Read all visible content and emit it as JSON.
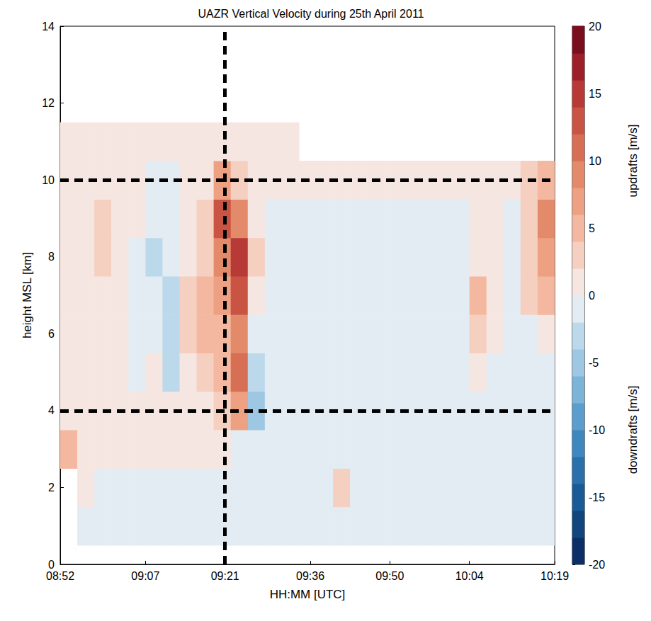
{
  "chart_data": {
    "type": "heatmap",
    "title": "UAZR Vertical Velocity during 25th April 2011",
    "x_label": "HH:MM [UTC]",
    "y_label": "height MSL [km]",
    "xlim": [
      532,
      619
    ],
    "xticks": [
      {
        "value": 532,
        "label": "08:52"
      },
      {
        "value": 547,
        "label": "09:07"
      },
      {
        "value": 561,
        "label": "09:21"
      },
      {
        "value": 576,
        "label": "09:36"
      },
      {
        "value": 590,
        "label": "09:50"
      },
      {
        "value": 604,
        "label": "10:04"
      },
      {
        "value": 619,
        "label": "10:19"
      }
    ],
    "ylim": [
      0,
      14
    ],
    "yticks": [
      0,
      2,
      4,
      6,
      8,
      10,
      12,
      14
    ],
    "grid": false,
    "time_bins": [
      532,
      535,
      538,
      541,
      544,
      547,
      550,
      553,
      556,
      559,
      562,
      565,
      568,
      571,
      574,
      577,
      580,
      583,
      586,
      589,
      592,
      595,
      598,
      601,
      604,
      607,
      610,
      613,
      616,
      619
    ],
    "height_bins": [
      0.5,
      1.5,
      2.5,
      3.5,
      4.5,
      5.5,
      6.5,
      7.5,
      8.5,
      9.5,
      10.5,
      11.5
    ],
    "w": [
      [
        null,
        -1,
        -1,
        -1,
        -1,
        -0.5,
        -1,
        -1,
        -0.5,
        -1,
        -1,
        -1,
        -0.5,
        -1,
        -1,
        -1,
        -0.5,
        -1,
        -1,
        -1,
        -0.5,
        -1,
        -1,
        -1,
        -1,
        -1,
        -2,
        -1,
        -1
      ],
      [
        null,
        1,
        -1,
        -0.5,
        -1,
        -0.5,
        -0.5,
        -1,
        -0.5,
        -1,
        -1,
        -1,
        -1,
        -0.5,
        -1,
        -0.5,
        2,
        -0.5,
        -1,
        -1,
        -1,
        -0.5,
        -1,
        -1,
        -1,
        -0.5,
        -1,
        -1,
        -1
      ],
      [
        4,
        1,
        1,
        0.5,
        1,
        1,
        0.5,
        1,
        1,
        0.5,
        -1,
        -1,
        -1,
        -0.5,
        -1,
        -1,
        -0.5,
        -1,
        -0.5,
        -1,
        -1,
        -0.5,
        -1,
        -1,
        -1,
        -0.5,
        -1,
        -1,
        -1
      ],
      [
        1,
        1,
        0.5,
        1,
        1,
        1,
        1,
        0.5,
        1,
        2,
        6,
        -6,
        -2,
        -1,
        -0.5,
        -1,
        -1,
        -0.5,
        -1,
        -1,
        -1,
        -0.5,
        -1,
        -1,
        -0.5,
        -1,
        -1,
        -2,
        -1
      ],
      [
        1,
        0.5,
        1,
        1,
        -1,
        1,
        -3,
        1,
        2,
        4,
        10,
        -4,
        -1,
        -1,
        -0.5,
        -1,
        -1,
        -0.5,
        -0.5,
        -1,
        -1,
        -0.5,
        -1,
        -0.5,
        1,
        -1,
        -1,
        -1,
        -0.5
      ],
      [
        0.5,
        0.5,
        1,
        1,
        -1,
        -2,
        -4,
        3,
        5,
        4,
        9,
        -2,
        -1,
        -1,
        -0.5,
        -0.5,
        -1,
        -0.5,
        -0.5,
        -1,
        -1,
        -0.5,
        -0.5,
        -0.5,
        3,
        1,
        -1,
        -1,
        0.5
      ],
      [
        1,
        1,
        1,
        0.5,
        -1,
        -2,
        -4,
        2,
        4,
        6,
        13,
        1,
        -1,
        -1,
        -0.5,
        -1,
        -1,
        -0.5,
        -1,
        -1,
        -0.5,
        -1,
        -0.5,
        -0.5,
        4,
        1,
        -1,
        2,
        5
      ],
      [
        1,
        1,
        2,
        1,
        -1,
        -3,
        -2,
        1,
        3,
        9,
        15,
        2,
        -1,
        -1,
        -1,
        -1,
        -1,
        -0.5,
        -0.5,
        -1,
        -1,
        -0.5,
        -1,
        -0.5,
        1,
        0.5,
        -0.5,
        3,
        7
      ],
      [
        1,
        1,
        2,
        1,
        0.5,
        -2,
        -1,
        1,
        2,
        12,
        8,
        1,
        -0.5,
        -1,
        -1,
        -0.5,
        -0.5,
        -1,
        -0.5,
        -0.5,
        -0.5,
        -0.5,
        -1,
        -0.5,
        0.5,
        0.5,
        -0.5,
        3,
        8
      ],
      [
        0.5,
        1,
        1,
        0.5,
        0.5,
        -1,
        -0.5,
        1,
        1,
        6,
        3,
        1,
        0.5,
        0.5,
        0.5,
        0.5,
        0.5,
        0.5,
        0.5,
        0.5,
        0.5,
        0.5,
        0.5,
        0.5,
        0.5,
        0.5,
        1,
        2,
        4
      ],
      [
        0.5,
        0.5,
        0.5,
        0.5,
        0.5,
        0.5,
        0.5,
        0.5,
        0.5,
        1,
        1,
        0.5,
        0.5,
        0.5,
        null,
        null,
        null,
        null,
        null,
        null,
        null,
        null,
        null,
        null,
        null,
        null,
        null,
        null,
        null
      ]
    ],
    "colorbar": {
      "range": [
        -20,
        20
      ],
      "ticks": [
        -20,
        -15,
        -10,
        -5,
        0,
        5,
        10,
        15,
        20
      ],
      "levels": [
        -20,
        -18,
        -16,
        -14,
        -12,
        -10,
        -8,
        -6,
        -4,
        -2,
        0,
        2,
        4,
        6,
        8,
        10,
        12,
        14,
        16,
        18,
        20
      ],
      "colors": [
        "#0b2f66",
        "#12457e",
        "#1a5a96",
        "#2a70ab",
        "#3f87bf",
        "#5b9dcc",
        "#7cb3d8",
        "#9dc7e2",
        "#bcd9eb",
        "#e3ecf2",
        "#f6e6e1",
        "#f5cfc0",
        "#f3b89f",
        "#eda082",
        "#e38a6b",
        "#d76f55",
        "#c95444",
        "#b73a36",
        "#9c1f2a",
        "#7a0d1e"
      ],
      "up_label": "updrafts [m/s]",
      "down_label": "downdrafts [m/s]"
    },
    "reference_lines": {
      "x": [
        561
      ],
      "y": [
        4,
        10
      ]
    }
  }
}
